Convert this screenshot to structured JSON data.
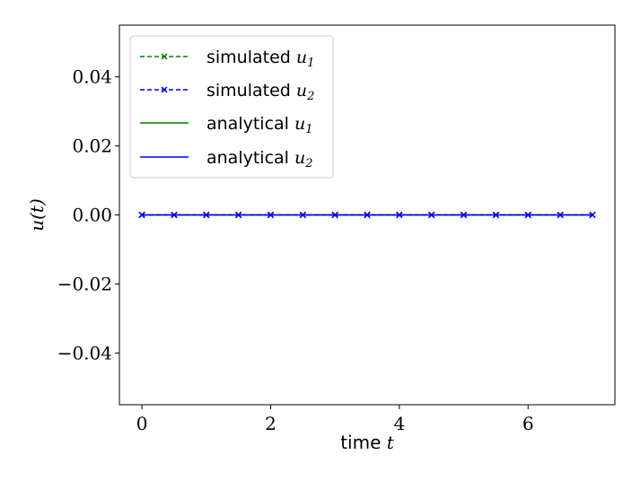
{
  "chart_data": {
    "type": "line",
    "xlabel": "time",
    "xlabel_var": "t",
    "ylabel": "u(t)",
    "xlim": [
      -0.35,
      7.35
    ],
    "ylim": [
      -0.055,
      0.055
    ],
    "xticks": [
      0,
      2,
      4,
      6
    ],
    "xtick_labels": [
      "0",
      "2",
      "4",
      "6"
    ],
    "yticks": [
      0.04,
      0.02,
      0.0,
      -0.02,
      -0.04
    ],
    "ytick_labels": [
      "0.04",
      "0.02",
      "0.00",
      "−0.02",
      "−0.04"
    ],
    "grid": false,
    "legend_position": "top-left",
    "x": [
      0,
      0.5,
      1,
      1.5,
      2,
      2.5,
      3,
      3.5,
      4,
      4.5,
      5,
      5.5,
      6,
      6.5,
      7
    ],
    "series": [
      {
        "name": "simulated u₁",
        "label_text": "simulated",
        "var": "u",
        "sub": "1",
        "color": "#008000",
        "style": "dashed",
        "marker": "x",
        "values": [
          0,
          0,
          0,
          0,
          0,
          0,
          0,
          0,
          0,
          0,
          0,
          0,
          0,
          0,
          0
        ]
      },
      {
        "name": "simulated u₂",
        "label_text": "simulated",
        "var": "u",
        "sub": "2",
        "color": "#0000ff",
        "style": "dashed",
        "marker": "x",
        "values": [
          0,
          0,
          0,
          0,
          0,
          0,
          0,
          0,
          0,
          0,
          0,
          0,
          0,
          0,
          0
        ]
      },
      {
        "name": "analytical u₁",
        "label_text": "analytical",
        "var": "u",
        "sub": "1",
        "color": "#008000",
        "style": "solid",
        "marker": "none",
        "values": [
          0,
          0,
          0,
          0,
          0,
          0,
          0,
          0,
          0,
          0,
          0,
          0,
          0,
          0,
          0
        ]
      },
      {
        "name": "analytical u₂",
        "label_text": "analytical",
        "var": "u",
        "sub": "2",
        "color": "#0000ff",
        "style": "solid",
        "marker": "none",
        "values": [
          0,
          0,
          0,
          0,
          0,
          0,
          0,
          0,
          0,
          0,
          0,
          0,
          0,
          0,
          0
        ]
      }
    ]
  }
}
